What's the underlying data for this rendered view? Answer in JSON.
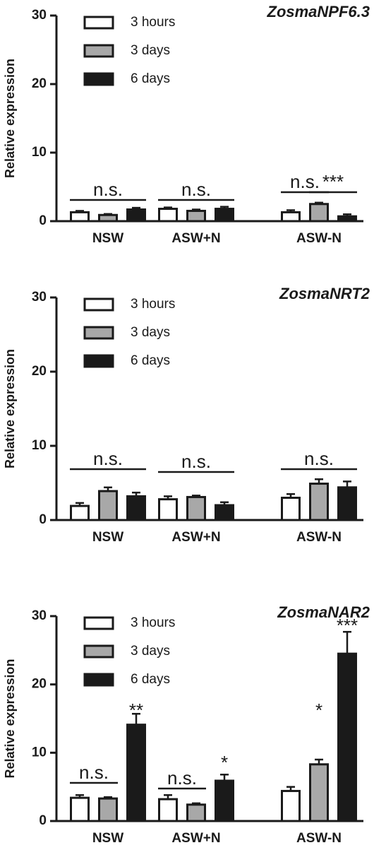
{
  "chart_data": [
    {
      "type": "bar",
      "title": "ZosmaNPF6.3",
      "y_label": "Relative expression",
      "categories": [
        "NSW",
        "ASW+N",
        "ASW-N"
      ],
      "series": [
        {
          "name": "3 hours",
          "color": "#ffffff",
          "values": [
            1.3,
            1.8,
            1.3
          ],
          "errors": [
            0.2,
            0.2,
            0.3
          ]
        },
        {
          "name": "3 days",
          "color": "#a8a8a8",
          "values": [
            0.9,
            1.5,
            2.5
          ],
          "errors": [
            0.15,
            0.2,
            0.2
          ]
        },
        {
          "name": "6 days",
          "color": "#1a1a1a",
          "values": [
            1.7,
            1.8,
            0.7
          ],
          "errors": [
            0.25,
            0.3,
            0.3
          ]
        }
      ],
      "annotations": [
        "n.s.",
        "n.s.",
        "n.s.",
        "***"
      ],
      "ylim": [
        0,
        30
      ],
      "yticks": [
        0,
        10,
        20,
        30
      ]
    },
    {
      "type": "bar",
      "title": "ZosmaNRT2",
      "y_label": "Relative expression",
      "categories": [
        "NSW",
        "ASW+N",
        "ASW-N"
      ],
      "series": [
        {
          "name": "3 hours",
          "color": "#ffffff",
          "values": [
            1.9,
            2.8,
            3.0
          ],
          "errors": [
            0.4,
            0.4,
            0.5
          ]
        },
        {
          "name": "3 days",
          "color": "#a8a8a8",
          "values": [
            3.9,
            3.1,
            4.9
          ],
          "errors": [
            0.5,
            0.2,
            0.6
          ]
        },
        {
          "name": "6 days",
          "color": "#1a1a1a",
          "values": [
            3.2,
            2.0,
            4.4
          ],
          "errors": [
            0.5,
            0.4,
            0.8
          ]
        }
      ],
      "annotations": [
        "n.s.",
        "n.s.",
        "n.s."
      ],
      "ylim": [
        0,
        30
      ],
      "yticks": [
        0,
        10,
        20,
        30
      ]
    },
    {
      "type": "bar",
      "title": "ZosmaNAR2",
      "y_label": "Relative expression",
      "categories": [
        "NSW",
        "ASW+N",
        "ASW-N"
      ],
      "series": [
        {
          "name": "3 hours",
          "color": "#ffffff",
          "values": [
            3.4,
            3.2,
            4.4
          ],
          "errors": [
            0.4,
            0.6,
            0.6
          ]
        },
        {
          "name": "3 days",
          "color": "#a8a8a8",
          "values": [
            3.3,
            2.4,
            8.3
          ],
          "errors": [
            0.2,
            0.2,
            0.7
          ]
        },
        {
          "name": "6 days",
          "color": "#1a1a1a",
          "values": [
            14.1,
            5.9,
            24.5
          ],
          "errors": [
            1.6,
            0.9,
            3.2
          ]
        }
      ],
      "annotations": [
        "n.s.",
        "**",
        "n.s.",
        "*",
        "*",
        "***"
      ],
      "ylim": [
        0,
        30
      ],
      "yticks": [
        0,
        10,
        20,
        30
      ]
    }
  ]
}
